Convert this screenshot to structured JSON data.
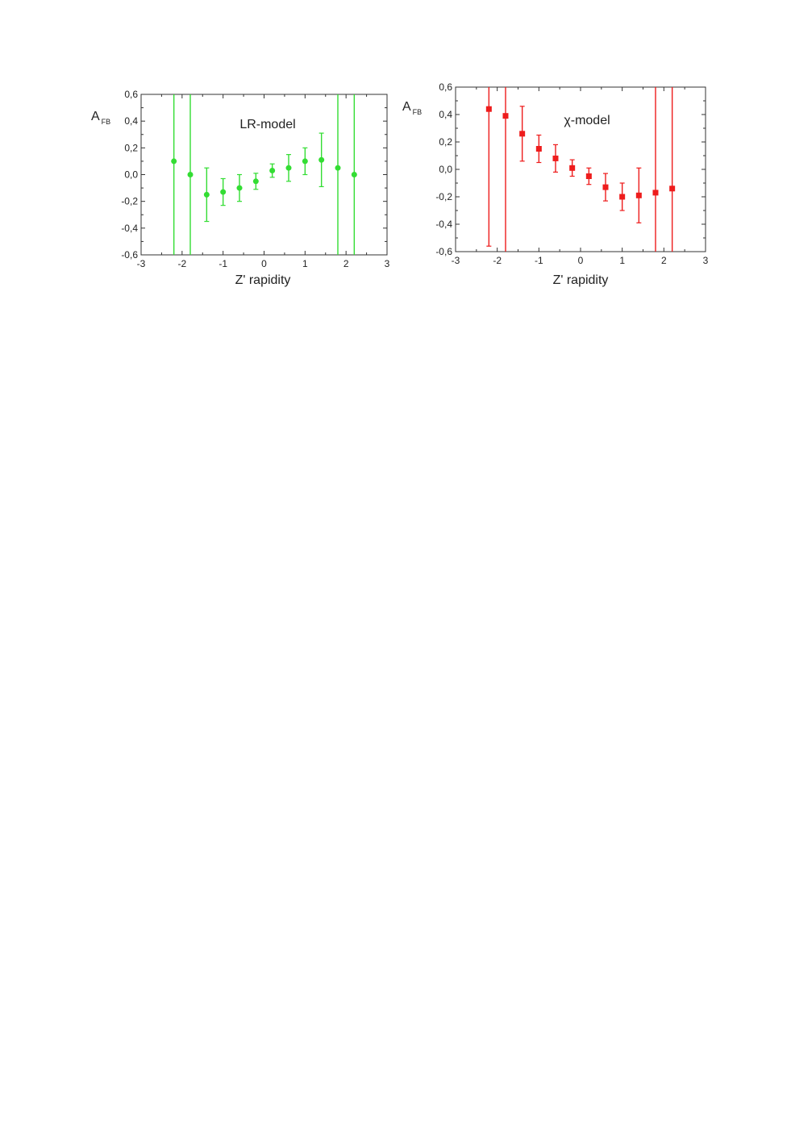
{
  "chart_data": [
    {
      "type": "scatter",
      "title": "LR-model",
      "xlabel": "Z' rapidity",
      "ylabel": "A",
      "ylabel_sub": "FB",
      "xlim": [
        -3,
        3
      ],
      "ylim": [
        -0.6,
        0.6
      ],
      "xticks": [
        "-3",
        "-2",
        "-1",
        "0",
        "1",
        "2",
        "3"
      ],
      "yticks": [
        "-0,6",
        "-0,4",
        "-0,2",
        "0,0",
        "0,2",
        "0,4",
        "0,6"
      ],
      "marker": "circle",
      "color": "#33dd33",
      "series": [
        {
          "x": [
            -2.2,
            -1.8,
            -1.4,
            -1.0,
            -0.6,
            -0.2,
            0.2,
            0.6,
            1.0,
            1.4,
            1.8,
            2.2
          ],
          "y": [
            0.1,
            0.0,
            -0.15,
            -0.13,
            -0.1,
            -0.05,
            0.03,
            0.05,
            0.1,
            0.11,
            0.05,
            0.0
          ],
          "err": [
            1.0,
            1.0,
            0.2,
            0.1,
            0.1,
            0.06,
            0.05,
            0.1,
            0.1,
            0.2,
            1.0,
            1.0
          ]
        }
      ]
    },
    {
      "type": "scatter",
      "title": "χ-model",
      "xlabel": "Z' rapidity",
      "ylabel": "A",
      "ylabel_sub": "FB",
      "xlim": [
        -3,
        3
      ],
      "ylim": [
        -0.6,
        0.6
      ],
      "xticks": [
        "-3",
        "-2",
        "-1",
        "0",
        "1",
        "2",
        "3"
      ],
      "yticks": [
        "-0,6",
        "-0,4",
        "-0,2",
        "0,0",
        "0,2",
        "0,4",
        "0,6"
      ],
      "marker": "square",
      "color": "#ee1c1c",
      "series": [
        {
          "x": [
            -2.2,
            -1.8,
            -1.4,
            -1.0,
            -0.6,
            -0.2,
            0.2,
            0.6,
            1.0,
            1.4,
            1.8,
            2.2
          ],
          "y": [
            0.44,
            0.39,
            0.26,
            0.15,
            0.08,
            0.01,
            -0.05,
            -0.13,
            -0.2,
            -0.19,
            -0.17,
            -0.14
          ],
          "err": [
            1.0,
            1.0,
            0.2,
            0.1,
            0.1,
            0.06,
            0.06,
            0.1,
            0.1,
            0.2,
            1.0,
            1.0
          ]
        }
      ]
    }
  ]
}
